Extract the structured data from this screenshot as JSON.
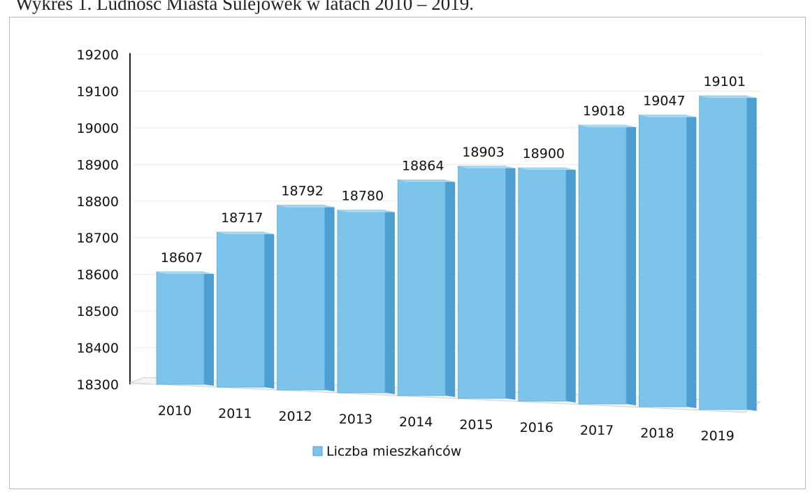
{
  "caption": "Wykres 1. Ludność Miasta Sulejówek w latach 2010 – 2019.",
  "chart_data": {
    "type": "bar",
    "categories": [
      "2010",
      "2011",
      "2012",
      "2013",
      "2014",
      "2015",
      "2016",
      "2017",
      "2018",
      "2019"
    ],
    "series": [
      {
        "name": "Liczba mieszkańców",
        "values": [
          18607,
          18717,
          18792,
          18780,
          18864,
          18903,
          18900,
          19018,
          19047,
          19101
        ]
      }
    ],
    "yticks": [
      "18300",
      "18400",
      "18500",
      "18600",
      "18700",
      "18800",
      "18900",
      "19000",
      "19100",
      "19200"
    ],
    "ylim": [
      18300,
      19200
    ],
    "title": "",
    "xlabel": "",
    "ylabel": "",
    "legend_position": "bottom",
    "bar_color": "#7cc4ea",
    "bar_side_color": "#4c9fd0",
    "bar_top_color": "#a7d9f3",
    "style": "3d-perspective"
  }
}
